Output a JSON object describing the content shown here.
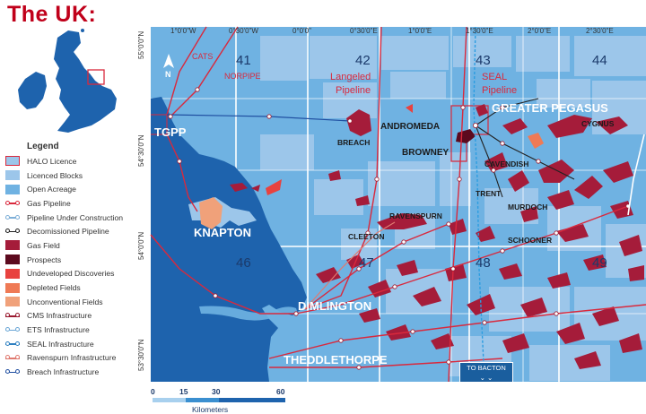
{
  "header": {
    "title": "The UK:"
  },
  "legend": {
    "title": "Legend",
    "items": [
      {
        "label": "HALO Licence",
        "kind": "box",
        "color": "#9cc6ea",
        "border": "#d9293d"
      },
      {
        "label": "Licenced Blocks",
        "kind": "box",
        "color": "#9cc6ea"
      },
      {
        "label": "Open Acreage",
        "kind": "box",
        "color": "#6fb2e2"
      },
      {
        "label": "Gas Pipeline",
        "kind": "line",
        "color": "#d9293d"
      },
      {
        "label": "Pipeline Under Construction",
        "kind": "line",
        "color": "#7fb0d8"
      },
      {
        "label": "Decomissioned Pipeline",
        "kind": "line",
        "color": "#222222"
      },
      {
        "label": "Gas Field",
        "kind": "box",
        "color": "#a51c3a"
      },
      {
        "label": "Prospects",
        "kind": "box",
        "color": "#5c0a1e"
      },
      {
        "label": "Undeveloped Discoveries",
        "kind": "box",
        "color": "#e8423f"
      },
      {
        "label": "Depleted Fields",
        "kind": "box",
        "color": "#ef7a55"
      },
      {
        "label": "Unconventional Fields",
        "kind": "box",
        "color": "#f0a17a"
      },
      {
        "label": "CMS Infrastructure",
        "kind": "line",
        "color": "#9a1a30"
      },
      {
        "label": "ETS Infrastructure",
        "kind": "line",
        "color": "#6aa6d6"
      },
      {
        "label": "SEAL Infrastructure",
        "kind": "line",
        "color": "#2d7fc0"
      },
      {
        "label": "Ravenspurn Infrastructure",
        "kind": "line",
        "color": "#e07a70"
      },
      {
        "label": "Breach Infrastructure",
        "kind": "line",
        "color": "#1f4ea0"
      }
    ]
  },
  "map": {
    "lon_labels": [
      "1°0'0\"W",
      "0°30'0\"W",
      "0°0'0\"",
      "0°30'0\"E",
      "1°0'0\"E",
      "1°30'0\"E",
      "2°0'0\"E",
      "2°30'0\"E"
    ],
    "lat_labels": [
      "55°0'0\"N",
      "54°30'0\"N",
      "54°0'0\"N",
      "53°30'0\"N"
    ],
    "blocks": [
      "41",
      "42",
      "43",
      "44",
      "46",
      "47",
      "48",
      "49"
    ],
    "places": {
      "tgpp": "TGPP",
      "knapton": "KNAPTON",
      "dimlington": "DIMLINGTON",
      "theddlethorpe": "THEDDLETHORPE",
      "greater_pegasus": "GREATER PEGASUS"
    },
    "pipelines": {
      "cats": "CATS",
      "norpipe": "NORPIPE",
      "langeled_1": "Langeled",
      "langeled_2": "Pipeline",
      "seal_1": "SEAL",
      "seal_2": "Pipeline"
    },
    "fields": {
      "andromeda": "ANDROMEDA",
      "breach": "BREACH",
      "browney": "BROWNEY",
      "cygnus": "CYGNUS",
      "cavendish": "CAVENDISH",
      "trent": "TRENT",
      "murdoch": "MURDOCH",
      "ravenspurn": "RAVENSPURN",
      "cleeton": "CLEETON",
      "schooner": "SCHOONER"
    },
    "north_arrow": "N",
    "to_bacton_1": "TO BACTON",
    "to_bacton_2": "⌄     ⌄"
  },
  "scale": {
    "ticks": [
      "0",
      "15",
      "30",
      "60"
    ],
    "unit": "Kilometers"
  },
  "colors": {
    "land": "#1e63ad",
    "open_acreage": "#6fb2e2",
    "licensed": "#9cc6ea",
    "gas_field": "#a51c3a",
    "pipeline": "#d9293d",
    "title": "#c0001a"
  }
}
